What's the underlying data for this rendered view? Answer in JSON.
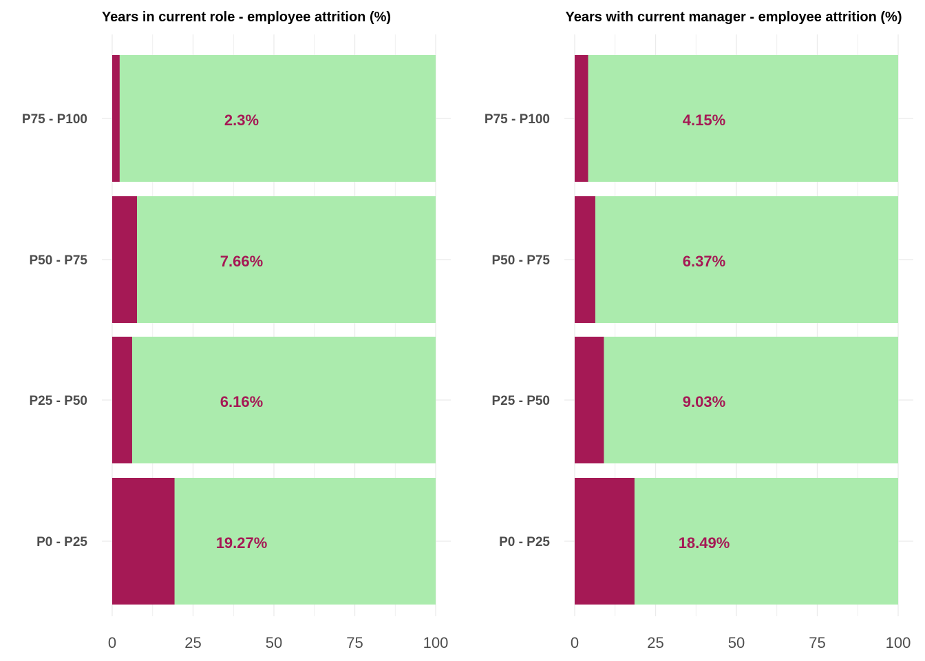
{
  "chart_data": [
    {
      "type": "bar",
      "orientation": "horizontal",
      "stacked": true,
      "title": "Years in current role - employee attrition (%)",
      "categories": [
        "P0 - P25",
        "P25 - P50",
        "P50 - P75",
        "P75 - P100"
      ],
      "values": [
        19.27,
        6.16,
        7.66,
        2.3
      ],
      "data_labels": [
        "19.27%",
        "6.16%",
        "7.66%",
        "2.3%"
      ],
      "total": 100,
      "xlim": [
        0,
        100
      ],
      "xticks": [
        "0",
        "25",
        "50",
        "75",
        "100"
      ],
      "xlabel": "",
      "ylabel": ""
    },
    {
      "type": "bar",
      "orientation": "horizontal",
      "stacked": true,
      "title": "Years with current manager - employee attrition (%)",
      "categories": [
        "P0 - P25",
        "P25 - P50",
        "P50 - P75",
        "P75 - P100"
      ],
      "values": [
        18.49,
        9.03,
        6.37,
        4.15
      ],
      "data_labels": [
        "18.49%",
        "9.03%",
        "6.37%",
        "4.15%"
      ],
      "total": 100,
      "xlim": [
        0,
        100
      ],
      "xticks": [
        "0",
        "25",
        "50",
        "75",
        "100"
      ],
      "xlabel": "",
      "ylabel": ""
    }
  ],
  "colors": {
    "attrition": "#A51955",
    "remainder": "#ABEBAD",
    "label": "#A51955",
    "grid": "#EBEBEB"
  }
}
